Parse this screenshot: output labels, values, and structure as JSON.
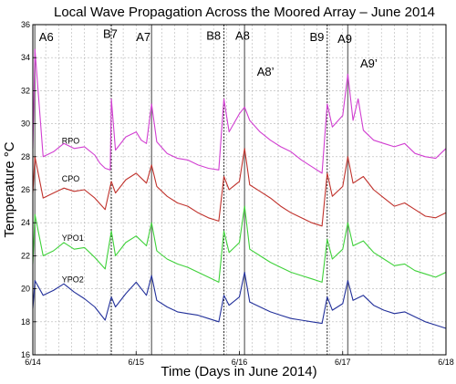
{
  "chart_data": {
    "type": "line",
    "title": "Local Wave Propagation Across the Moored Array – June 2014",
    "xlabel": "Time (Days in June 2014)",
    "ylabel": "Temperature °C",
    "xlim": [
      14,
      18
    ],
    "ylim": [
      16,
      36
    ],
    "x_ticks": [
      {
        "value": 14,
        "label": "6/14"
      },
      {
        "value": 15,
        "label": "6/15"
      },
      {
        "value": 16,
        "label": "6/16"
      },
      {
        "value": 17,
        "label": "6/17"
      },
      {
        "value": 18,
        "label": "6/18"
      }
    ],
    "y_ticks": [
      {
        "value": 16,
        "label": "16"
      },
      {
        "value": 18,
        "label": "18"
      },
      {
        "value": 20,
        "label": "20"
      },
      {
        "value": 22,
        "label": "22"
      },
      {
        "value": 24,
        "label": "24"
      },
      {
        "value": 26,
        "label": "26"
      },
      {
        "value": 28,
        "label": "28"
      },
      {
        "value": 30,
        "label": "30"
      },
      {
        "value": 32,
        "label": "32"
      },
      {
        "value": 34,
        "label": "34"
      },
      {
        "value": 36,
        "label": "36"
      }
    ],
    "grid": true,
    "series": [
      {
        "name": "RPO",
        "color": "#d13fd1",
        "x": [
          14.0,
          14.02,
          14.1,
          14.2,
          14.3,
          14.4,
          14.5,
          14.6,
          14.65,
          14.7,
          14.75,
          14.76,
          14.8,
          14.9,
          15.0,
          15.05,
          15.1,
          15.15,
          15.2,
          15.3,
          15.4,
          15.5,
          15.6,
          15.7,
          15.8,
          15.85,
          15.9,
          16.0,
          16.05,
          16.1,
          16.2,
          16.3,
          16.4,
          16.5,
          16.6,
          16.7,
          16.8,
          16.85,
          16.9,
          17.0,
          17.05,
          17.1,
          17.15,
          17.2,
          17.3,
          17.4,
          17.5,
          17.6,
          17.7,
          17.8,
          17.9,
          18.0
        ],
        "values": [
          28.5,
          34.5,
          28.0,
          28.3,
          28.8,
          28.5,
          28.6,
          28.1,
          27.6,
          27.3,
          27.2,
          31.5,
          28.4,
          29.2,
          29.5,
          29.0,
          28.8,
          31.2,
          28.9,
          28.2,
          27.9,
          27.8,
          27.5,
          27.3,
          27.2,
          31.5,
          29.5,
          30.6,
          31.0,
          30.2,
          29.5,
          29.0,
          28.6,
          28.3,
          27.8,
          27.4,
          27.0,
          31.2,
          29.8,
          30.5,
          33.0,
          30.2,
          31.5,
          29.6,
          29.0,
          28.8,
          28.6,
          28.8,
          28.2,
          28.0,
          27.9,
          28.5
        ]
      },
      {
        "name": "CPO",
        "color": "#c0322c",
        "x": [
          14.0,
          14.02,
          14.1,
          14.2,
          14.3,
          14.4,
          14.5,
          14.6,
          14.7,
          14.76,
          14.8,
          14.9,
          15.0,
          15.1,
          15.15,
          15.2,
          15.3,
          15.4,
          15.5,
          15.6,
          15.7,
          15.8,
          15.85,
          15.9,
          16.0,
          16.05,
          16.1,
          16.2,
          16.3,
          16.4,
          16.5,
          16.6,
          16.7,
          16.8,
          16.85,
          16.9,
          17.0,
          17.05,
          17.1,
          17.2,
          17.3,
          17.4,
          17.5,
          17.6,
          17.7,
          17.8,
          17.9,
          18.0
        ],
        "values": [
          25.8,
          28.0,
          25.5,
          25.8,
          26.1,
          25.9,
          26.0,
          25.5,
          24.8,
          26.5,
          25.8,
          26.6,
          27.0,
          26.4,
          27.5,
          26.2,
          25.6,
          25.2,
          25.0,
          24.6,
          24.3,
          24.1,
          26.8,
          26.0,
          26.5,
          28.5,
          26.3,
          25.9,
          25.5,
          25.0,
          24.6,
          24.3,
          24.0,
          23.8,
          27.0,
          25.6,
          26.2,
          28.0,
          26.4,
          26.8,
          26.0,
          25.5,
          25.0,
          25.2,
          24.8,
          24.4,
          24.3,
          24.6
        ]
      },
      {
        "name": "YPO1",
        "color": "#3fd13a",
        "x": [
          14.0,
          14.02,
          14.1,
          14.2,
          14.3,
          14.4,
          14.5,
          14.6,
          14.7,
          14.76,
          14.8,
          14.9,
          15.0,
          15.1,
          15.15,
          15.2,
          15.3,
          15.4,
          15.5,
          15.6,
          15.7,
          15.8,
          15.85,
          15.9,
          16.0,
          16.05,
          16.1,
          16.2,
          16.3,
          16.4,
          16.5,
          16.6,
          16.7,
          16.8,
          16.85,
          16.9,
          17.0,
          17.05,
          17.1,
          17.2,
          17.3,
          17.4,
          17.5,
          17.6,
          17.7,
          17.8,
          17.9,
          18.0
        ],
        "values": [
          21.5,
          24.5,
          22.0,
          22.3,
          22.8,
          22.4,
          22.5,
          21.9,
          21.2,
          23.5,
          22.0,
          22.8,
          23.2,
          22.6,
          24.0,
          22.3,
          21.8,
          21.5,
          21.3,
          21.0,
          20.7,
          20.4,
          23.5,
          22.2,
          22.8,
          25.0,
          22.4,
          22.0,
          21.6,
          21.3,
          21.0,
          20.8,
          20.6,
          20.4,
          23.0,
          21.8,
          22.4,
          24.0,
          22.6,
          22.9,
          22.2,
          21.8,
          21.4,
          21.5,
          21.1,
          20.9,
          20.7,
          21.0
        ]
      },
      {
        "name": "YPO2",
        "color": "#22309a",
        "x": [
          14.0,
          14.02,
          14.1,
          14.2,
          14.3,
          14.4,
          14.5,
          14.6,
          14.7,
          14.76,
          14.8,
          14.9,
          15.0,
          15.1,
          15.15,
          15.2,
          15.3,
          15.4,
          15.5,
          15.6,
          15.7,
          15.8,
          15.85,
          15.9,
          16.0,
          16.05,
          16.1,
          16.2,
          16.3,
          16.4,
          16.5,
          16.6,
          16.7,
          16.8,
          16.85,
          16.9,
          17.0,
          17.05,
          17.1,
          17.2,
          17.3,
          17.4,
          17.5,
          17.6,
          17.7,
          17.8,
          17.9,
          18.0
        ],
        "values": [
          18.8,
          20.5,
          19.6,
          19.9,
          20.3,
          19.8,
          19.4,
          18.9,
          18.1,
          19.5,
          18.9,
          19.7,
          20.4,
          19.6,
          20.8,
          19.3,
          18.9,
          18.6,
          18.5,
          18.4,
          18.2,
          18.0,
          19.6,
          19.0,
          19.5,
          21.0,
          19.2,
          18.9,
          18.6,
          18.4,
          18.2,
          18.1,
          18.0,
          17.9,
          19.5,
          18.7,
          19.1,
          20.5,
          19.3,
          19.6,
          19.0,
          18.7,
          18.5,
          18.6,
          18.3,
          18.0,
          17.8,
          17.6
        ]
      }
    ],
    "series_labels": [
      {
        "text": "RPO",
        "x": 14.28,
        "y": 28.8
      },
      {
        "text": "CPO",
        "x": 14.28,
        "y": 26.5
      },
      {
        "text": "YPO1",
        "x": 14.28,
        "y": 22.9
      },
      {
        "text": "YPO2",
        "x": 14.28,
        "y": 20.4
      }
    ],
    "event_lines": [
      {
        "x": 14.02,
        "style": "solid"
      },
      {
        "x": 14.76,
        "style": "dotted"
      },
      {
        "x": 15.15,
        "style": "solid"
      },
      {
        "x": 15.85,
        "style": "dotted"
      },
      {
        "x": 16.05,
        "style": "solid"
      },
      {
        "x": 16.85,
        "style": "dotted"
      },
      {
        "x": 17.05,
        "style": "solid"
      }
    ],
    "annotations": [
      {
        "text": "A6",
        "x": 14.06,
        "y": 35.0
      },
      {
        "text": "B7",
        "x": 14.68,
        "y": 35.2
      },
      {
        "text": "A7",
        "x": 15.0,
        "y": 35.0
      },
      {
        "text": "B8",
        "x": 15.68,
        "y": 35.1
      },
      {
        "text": "A8",
        "x": 15.96,
        "y": 35.1
      },
      {
        "text": "A8’",
        "x": 16.17,
        "y": 32.9
      },
      {
        "text": "B9",
        "x": 16.68,
        "y": 35.0
      },
      {
        "text": "A9",
        "x": 16.95,
        "y": 34.9
      },
      {
        "text": "A9’",
        "x": 17.17,
        "y": 33.4
      }
    ]
  }
}
